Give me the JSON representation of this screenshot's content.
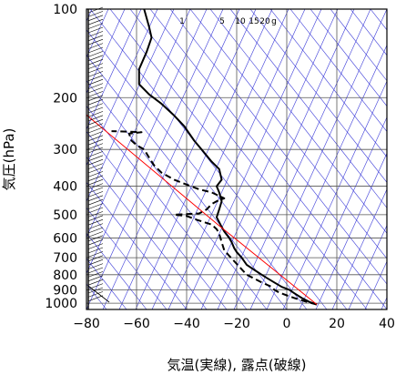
{
  "chart_data": {
    "type": "line",
    "xlabel": "気温(実線), 露点(破線)",
    "ylabel": "気圧(hPa)",
    "xlim": [
      -80,
      40
    ],
    "ylim": [
      1050,
      100
    ],
    "yscale": "log",
    "x_ticks": [
      -80,
      -60,
      -40,
      -20,
      0,
      20,
      40
    ],
    "y_ticks": [
      100,
      200,
      300,
      400,
      500,
      600,
      700,
      800,
      900,
      1000
    ],
    "mixing_ratio_labels": [
      "1",
      "5",
      "10",
      "15",
      "20",
      "g"
    ],
    "grid": true,
    "series": [
      {
        "name": "気温",
        "style": "solid",
        "color": "#000000",
        "points": [
          [
            12,
            1010
          ],
          [
            9,
            990
          ],
          [
            6,
            960
          ],
          [
            3,
            925
          ],
          [
            1,
            900
          ],
          [
            -2,
            880
          ],
          [
            -5,
            850
          ],
          [
            -8,
            820
          ],
          [
            -10,
            800
          ],
          [
            -13,
            770
          ],
          [
            -16,
            740
          ],
          [
            -18,
            700
          ],
          [
            -20,
            670
          ],
          [
            -21,
            650
          ],
          [
            -22,
            620
          ],
          [
            -23,
            600
          ],
          [
            -25,
            570
          ],
          [
            -26,
            550
          ],
          [
            -27,
            530
          ],
          [
            -28,
            510
          ],
          [
            -27,
            480
          ],
          [
            -26,
            450
          ],
          [
            -27,
            420
          ],
          [
            -28,
            400
          ],
          [
            -26,
            380
          ],
          [
            -27,
            350
          ],
          [
            -30,
            330
          ],
          [
            -34,
            300
          ],
          [
            -37,
            280
          ],
          [
            -41,
            250
          ],
          [
            -45,
            230
          ],
          [
            -50,
            210
          ],
          [
            -55,
            195
          ],
          [
            -59,
            180
          ],
          [
            -59,
            160
          ],
          [
            -56,
            140
          ],
          [
            -54,
            125
          ],
          [
            -55,
            115
          ],
          [
            -57,
            100
          ]
        ]
      },
      {
        "name": "露点",
        "style": "dashed",
        "color": "#000000",
        "points": [
          [
            12,
            1010
          ],
          [
            8,
            990
          ],
          [
            3,
            960
          ],
          [
            0,
            940
          ],
          [
            -3,
            920
          ],
          [
            -5,
            900
          ],
          [
            -6,
            880
          ],
          [
            -10,
            850
          ],
          [
            -16,
            800
          ],
          [
            -21,
            720
          ],
          [
            -23,
            690
          ],
          [
            -25,
            660
          ],
          [
            -26,
            620
          ],
          [
            -27,
            580
          ],
          [
            -28,
            560
          ],
          [
            -30,
            540
          ],
          [
            -33,
            530
          ],
          [
            -36,
            520
          ],
          [
            -40,
            505
          ],
          [
            -45,
            500
          ],
          [
            -35,
            495
          ],
          [
            -32,
            480
          ],
          [
            -30,
            460
          ],
          [
            -28,
            450
          ],
          [
            -25,
            440
          ],
          [
            -30,
            420
          ],
          [
            -35,
            410
          ],
          [
            -40,
            395
          ],
          [
            -45,
            380
          ],
          [
            -50,
            360
          ],
          [
            -53,
            340
          ],
          [
            -55,
            320
          ],
          [
            -57,
            300
          ],
          [
            -60,
            290
          ],
          [
            -62,
            280
          ],
          [
            -63,
            265
          ],
          [
            -58,
            262
          ],
          [
            -70,
            260
          ]
        ]
      },
      {
        "name": "",
        "style": "solid",
        "color": "#ff0000",
        "points": [
          [
            12,
            1010
          ],
          [
            -27,
            545
          ],
          [
            -80,
            229
          ]
        ]
      }
    ],
    "wind_barbs_column": true
  }
}
